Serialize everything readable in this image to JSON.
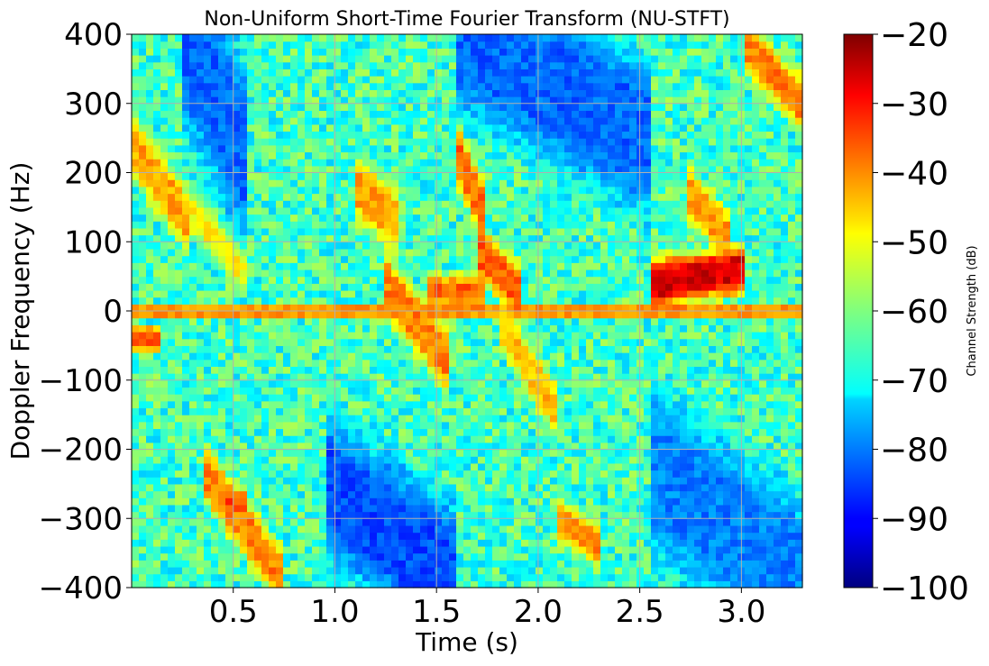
{
  "chart_data": {
    "type": "heatmap",
    "title": "Non-Uniform Short-Time Fourier Transform (NU-STFT)",
    "xlabel": "Time (s)",
    "ylabel": "Doppler Frequency (Hz)",
    "xlim": [
      0.0,
      3.3
    ],
    "ylim": [
      -400,
      400
    ],
    "x_ticks": [
      0.5,
      1.0,
      1.5,
      2.0,
      2.5,
      3.0
    ],
    "x_tick_labels": [
      "0.5",
      "1.0",
      "1.5",
      "2.0",
      "2.5",
      "3.0"
    ],
    "y_ticks": [
      400,
      300,
      200,
      100,
      0,
      -100,
      -200,
      -300,
      -400
    ],
    "y_tick_labels": [
      "400",
      "300",
      "200",
      "100",
      "0",
      "−100",
      "−200",
      "−300",
      "−400"
    ],
    "grid": true,
    "colormap": "jet",
    "colorbar": {
      "label": "Channel Strength (dB)",
      "range": [
        -100,
        -20
      ],
      "ticks": [
        -20,
        -30,
        -40,
        -50,
        -60,
        -70,
        -80,
        -90,
        -100
      ],
      "tick_labels": [
        "−20",
        "−30",
        "−40",
        "−50",
        "−60",
        "−70",
        "−80",
        "−90",
        "−100"
      ]
    },
    "background_level_db": -65,
    "zero_doppler_line": {
      "frequency": 0,
      "level_db": -42
    },
    "features": [
      {
        "t_start": 0.0,
        "t_end": 0.3,
        "f_start": 240,
        "f_end": 120,
        "width": 60,
        "level_db": -43,
        "note": "descending band"
      },
      {
        "t_start": 0.3,
        "t_end": 0.55,
        "f_start": 140,
        "f_end": 60,
        "width": 40,
        "level_db": -50
      },
      {
        "t_start": 0.0,
        "t_end": 0.15,
        "f_start": -40,
        "f_end": -40,
        "width": 25,
        "level_db": -35
      },
      {
        "t_start": 0.35,
        "t_end": 0.75,
        "f_start": -230,
        "f_end": -390,
        "width": 55,
        "level_db": -40,
        "note": "descending band"
      },
      {
        "t_start": 0.45,
        "t_end": 0.55,
        "f_start": -275,
        "f_end": -275,
        "width": 20,
        "level_db": -36
      },
      {
        "t_start": 1.1,
        "t_end": 1.3,
        "f_start": 180,
        "f_end": 130,
        "width": 60,
        "level_db": -43
      },
      {
        "t_start": 1.25,
        "t_end": 1.55,
        "f_start": 40,
        "f_end": -70,
        "width": 60,
        "level_db": -40,
        "note": "descending band"
      },
      {
        "t_start": 1.45,
        "t_end": 1.75,
        "f_start": 30,
        "f_end": 30,
        "width": 30,
        "level_db": -38
      },
      {
        "t_start": 1.6,
        "t_end": 1.75,
        "f_start": 230,
        "f_end": 130,
        "width": 60,
        "level_db": -38,
        "note": "descending band"
      },
      {
        "t_start": 1.7,
        "t_end": 1.9,
        "f_start": 90,
        "f_end": 30,
        "width": 50,
        "level_db": -37
      },
      {
        "t_start": 1.8,
        "t_end": 2.1,
        "f_start": -10,
        "f_end": -150,
        "width": 50,
        "level_db": -45,
        "note": "descending band"
      },
      {
        "t_start": 2.1,
        "t_end": 2.3,
        "f_start": -300,
        "f_end": -340,
        "width": 40,
        "level_db": -40
      },
      {
        "t_start": 2.55,
        "t_end": 3.0,
        "f_start": 40,
        "f_end": 60,
        "width": 45,
        "level_db": -27,
        "note": "strongest return"
      },
      {
        "t_start": 2.75,
        "t_end": 2.95,
        "f_start": 170,
        "f_end": 100,
        "width": 50,
        "level_db": -42
      },
      {
        "t_start": 3.0,
        "t_end": 3.3,
        "f_start": 390,
        "f_end": 300,
        "width": 50,
        "level_db": -40
      },
      {
        "t_start": 0.25,
        "t_end": 0.55,
        "f_start": 400,
        "f_end": 230,
        "width": 170,
        "level_db": -82,
        "note": "low-strength region"
      },
      {
        "t_start": 1.6,
        "t_end": 2.55,
        "f_start": 400,
        "f_end": 250,
        "width": 150,
        "level_db": -82,
        "note": "low-strength region"
      },
      {
        "t_start": 0.95,
        "t_end": 1.6,
        "f_start": -250,
        "f_end": -390,
        "width": 140,
        "level_db": -84,
        "note": "low-strength region"
      },
      {
        "t_start": 2.55,
        "t_end": 3.3,
        "f_start": -230,
        "f_end": -390,
        "width": 160,
        "level_db": -80,
        "note": "low-strength region"
      }
    ]
  }
}
